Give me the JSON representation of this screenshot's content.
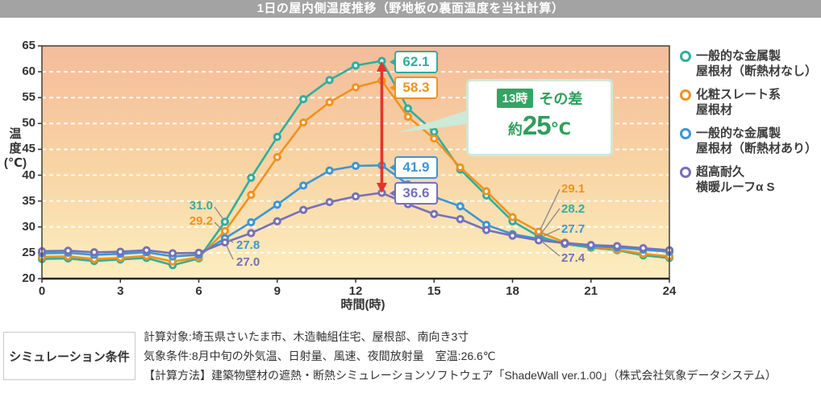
{
  "title": "1日の屋内側温度推移（野地板の裏面温度を当社計算）",
  "chart_data": {
    "type": "line",
    "x": [
      0,
      1,
      2,
      3,
      4,
      5,
      6,
      7,
      8,
      9,
      10,
      11,
      12,
      13,
      14,
      15,
      16,
      17,
      18,
      19,
      20,
      21,
      22,
      23,
      24
    ],
    "x_ticks": [
      0,
      3,
      6,
      9,
      12,
      15,
      18,
      21,
      24
    ],
    "y_ticks": [
      65,
      60,
      55,
      50,
      45,
      40,
      35,
      30,
      25,
      20
    ],
    "xlim": [
      0,
      24
    ],
    "ylim": [
      20,
      65
    ],
    "xlabel": "時間(時)",
    "ylabel": "温度(℃)",
    "ylabel_chars": [
      "温",
      "度",
      "(℃)"
    ],
    "grid": "horizontal white dashed every 5°C",
    "legend_position": "right",
    "plot_bg_gradient": [
      "#f4bc9b",
      "#f8d3a3",
      "#fceebf"
    ],
    "grid_color": "rgba(255,255,255,0.9)",
    "arrow_color": "#e6342b",
    "callout_green": "#2f9e5c",
    "title_bar_bg": "#a3a3a3",
    "series": [
      {
        "name": "一般的な金属製屋根材（断熱材なし）",
        "legend_lines": [
          "一般的な金属製",
          "屋根材（断熱材なし）"
        ],
        "color": "#2fae9d",
        "values": [
          23.8,
          23.9,
          23.4,
          23.7,
          24.0,
          22.6,
          23.9,
          31.0,
          39.5,
          47.4,
          54.7,
          58.4,
          61.2,
          62.1,
          52.9,
          48.4,
          41.1,
          36.1,
          31.1,
          28.2,
          26.7,
          26.0,
          25.5,
          24.5,
          24.0
        ]
      },
      {
        "name": "化粧スレート系屋根材",
        "legend_lines": [
          "化粧スレート系",
          "屋根材"
        ],
        "color": "#f0921f",
        "values": [
          24.2,
          24.3,
          23.8,
          24.0,
          24.4,
          23.3,
          24.1,
          29.2,
          36.2,
          43.5,
          50.2,
          54.1,
          57.0,
          58.3,
          51.3,
          47.1,
          41.5,
          36.9,
          31.9,
          29.1,
          27.0,
          26.2,
          25.6,
          24.8,
          24.3
        ]
      },
      {
        "name": "一般的な金属製屋根材（断熱材あり）",
        "legend_lines": [
          "一般的な金属製",
          "屋根材（断熱材あり）"
        ],
        "color": "#3c96d3",
        "values": [
          24.9,
          25.0,
          24.6,
          24.8,
          25.1,
          24.3,
          24.6,
          27.8,
          30.9,
          34.3,
          38.0,
          40.9,
          41.8,
          41.9,
          38.2,
          35.8,
          34.0,
          30.4,
          28.6,
          27.7,
          26.8,
          26.3,
          26.0,
          25.6,
          25.2
        ]
      },
      {
        "name": "超高耐久 横暖ルーフα S",
        "legend_lines": [
          "超高耐久",
          "横暖ルーフα S"
        ],
        "color": "#7570b9",
        "values": [
          25.3,
          25.4,
          25.1,
          25.2,
          25.5,
          24.9,
          25.0,
          27.0,
          28.8,
          31.1,
          33.3,
          34.8,
          35.9,
          36.6,
          34.4,
          32.5,
          31.5,
          29.4,
          28.3,
          27.4,
          26.9,
          26.5,
          26.3,
          25.9,
          25.5
        ]
      }
    ],
    "peak_hour": 13,
    "peak_labels": [
      {
        "series": 0,
        "text": "62.1"
      },
      {
        "series": 1,
        "text": "58.3"
      },
      {
        "series": 2,
        "text": "41.9"
      },
      {
        "series": 3,
        "text": "36.6"
      }
    ],
    "morning_annotations": [
      {
        "series": 0,
        "hour": 7,
        "text": "31.0"
      },
      {
        "series": 1,
        "hour": 7,
        "text": "29.2"
      },
      {
        "series": 2,
        "hour": 7,
        "text": "27.8"
      },
      {
        "series": 3,
        "hour": 7,
        "text": "27.0"
      }
    ],
    "evening_annotations": [
      {
        "series": 1,
        "hour": 19,
        "text": "29.1"
      },
      {
        "series": 0,
        "hour": 19,
        "text": "28.2"
      },
      {
        "series": 2,
        "hour": 19,
        "text": "27.7"
      },
      {
        "series": 3,
        "hour": 19,
        "text": "27.4"
      }
    ],
    "callout": {
      "badge": "13時",
      "label": "その差",
      "approx": "約",
      "value": "25",
      "unit": "℃"
    }
  },
  "conditions": {
    "label": "シミュレーション条件",
    "lines": [
      "計算対象:埼玉県さいたま市、木造軸組住宅、屋根部、南向き3寸",
      "気象条件:8月中旬の外気温、日射量、風速、夜間放射量　室温:26.6℃",
      "【計算方法】建築物壁材の遮熱・断熱シミュレーションソフトウェア「ShadeWall ver.1.00」（株式会社気象データシステム）"
    ]
  }
}
